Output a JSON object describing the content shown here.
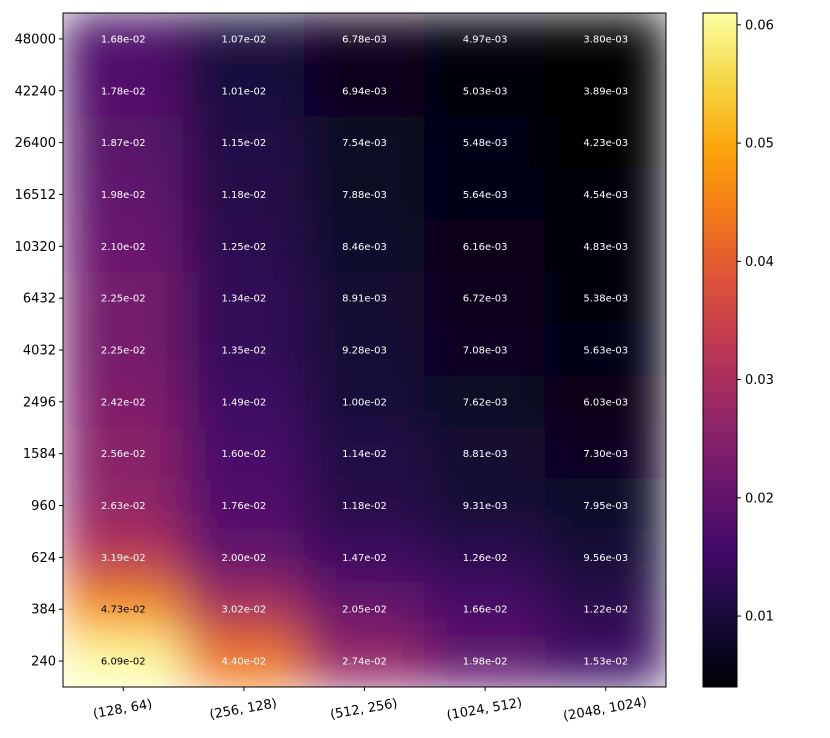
{
  "chart_data": {
    "type": "heatmap",
    "title": "",
    "xlabel": "",
    "ylabel": "",
    "x_categories": [
      "(128, 64)",
      "(256, 128)",
      "(512, 256)",
      "(1024, 512)",
      "(2048, 1024)"
    ],
    "y_categories": [
      "48000",
      "42240",
      "26400",
      "16512",
      "10320",
      "6432",
      "4032",
      "2496",
      "1584",
      "960",
      "624",
      "384",
      "240"
    ],
    "values": [
      [
        0.0168,
        0.0107,
        0.00678,
        0.00497,
        0.0038
      ],
      [
        0.0178,
        0.0101,
        0.00694,
        0.00503,
        0.00389
      ],
      [
        0.0187,
        0.0115,
        0.00754,
        0.00548,
        0.00423
      ],
      [
        0.0198,
        0.0118,
        0.00788,
        0.00564,
        0.00454
      ],
      [
        0.021,
        0.0125,
        0.00846,
        0.00616,
        0.00483
      ],
      [
        0.0225,
        0.0134,
        0.00891,
        0.00672,
        0.00538
      ],
      [
        0.0225,
        0.0135,
        0.00928,
        0.00708,
        0.00563
      ],
      [
        0.0242,
        0.0149,
        0.01,
        0.00762,
        0.00603
      ],
      [
        0.0256,
        0.016,
        0.0114,
        0.00881,
        0.0073
      ],
      [
        0.0263,
        0.0176,
        0.0118,
        0.00931,
        0.00795
      ],
      [
        0.0319,
        0.02,
        0.0147,
        0.0126,
        0.00956
      ],
      [
        0.0473,
        0.0302,
        0.0205,
        0.0166,
        0.0122
      ],
      [
        0.0609,
        0.044,
        0.0274,
        0.0198,
        0.0153
      ]
    ],
    "labels": [
      [
        "1.68e-02",
        "1.07e-02",
        "6.78e-03",
        "4.97e-03",
        "3.80e-03"
      ],
      [
        "1.78e-02",
        "1.01e-02",
        "6.94e-03",
        "5.03e-03",
        "3.89e-03"
      ],
      [
        "1.87e-02",
        "1.15e-02",
        "7.54e-03",
        "5.48e-03",
        "4.23e-03"
      ],
      [
        "1.98e-02",
        "1.18e-02",
        "7.88e-03",
        "5.64e-03",
        "4.54e-03"
      ],
      [
        "2.10e-02",
        "1.25e-02",
        "8.46e-03",
        "6.16e-03",
        "4.83e-03"
      ],
      [
        "2.25e-02",
        "1.34e-02",
        "8.91e-03",
        "6.72e-03",
        "5.38e-03"
      ],
      [
        "2.25e-02",
        "1.35e-02",
        "9.28e-03",
        "7.08e-03",
        "5.63e-03"
      ],
      [
        "2.42e-02",
        "1.49e-02",
        "1.00e-02",
        "7.62e-03",
        "6.03e-03"
      ],
      [
        "2.56e-02",
        "1.60e-02",
        "1.14e-02",
        "8.81e-03",
        "7.30e-03"
      ],
      [
        "2.63e-02",
        "1.76e-02",
        "1.18e-02",
        "9.31e-03",
        "7.95e-03"
      ],
      [
        "3.19e-02",
        "2.00e-02",
        "1.47e-02",
        "1.26e-02",
        "9.56e-03"
      ],
      [
        "4.73e-02",
        "3.02e-02",
        "2.05e-02",
        "1.66e-02",
        "1.22e-02"
      ],
      [
        "6.09e-02",
        "4.40e-02",
        "2.74e-02",
        "1.98e-02",
        "1.53e-02"
      ]
    ],
    "colormap": "inferno",
    "color_range": [
      0.004,
      0.061
    ],
    "colorbar_ticks": [
      0.01,
      0.02,
      0.03,
      0.04,
      0.05,
      0.06
    ],
    "colorbar_tick_labels": [
      "0.01",
      "0.02",
      "0.03",
      "0.04",
      "0.05",
      "0.06"
    ],
    "dark_text_threshold": 0.045,
    "colors": {
      "light_text": "#ffffff",
      "dark_text": "#000000",
      "axis": "#000000"
    }
  }
}
